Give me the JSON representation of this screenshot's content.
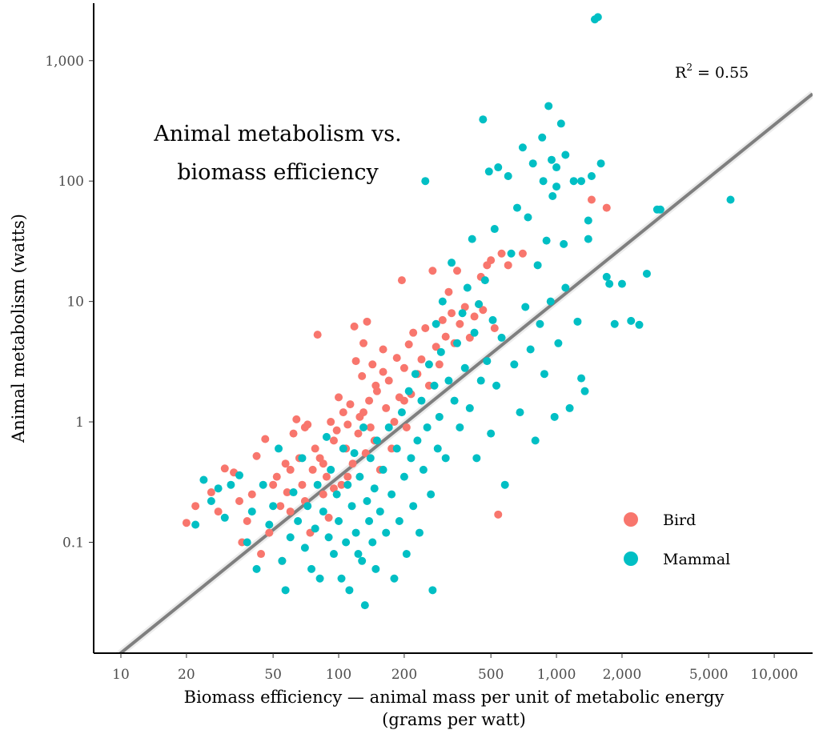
{
  "chart_data": {
    "type": "scatter",
    "title_lines": [
      "Animal metabolism vs.",
      "biomass efficiency"
    ],
    "xlabel_lines": [
      "Biomass efficiency — animal mass per unit of metabolic energy",
      "(grams per watt)"
    ],
    "ylabel": "Animal metabolism (watts)",
    "x_scale": "log",
    "y_scale": "log",
    "xlim": [
      7.5,
      15000
    ],
    "ylim": [
      0.012,
      3000
    ],
    "x_ticks": [
      {
        "value": 10,
        "label": "10"
      },
      {
        "value": 20,
        "label": "20"
      },
      {
        "value": 50,
        "label": "50"
      },
      {
        "value": 100,
        "label": "100"
      },
      {
        "value": 200,
        "label": "200"
      },
      {
        "value": 500,
        "label": "500"
      },
      {
        "value": 1000,
        "label": "1,000"
      },
      {
        "value": 2000,
        "label": "2,000"
      },
      {
        "value": 5000,
        "label": "5,000"
      },
      {
        "value": 10000,
        "label": "10,000"
      }
    ],
    "y_ticks": [
      {
        "value": 0.1,
        "label": "0.1"
      },
      {
        "value": 1,
        "label": "1"
      },
      {
        "value": 10,
        "label": "10"
      },
      {
        "value": 100,
        "label": "100"
      },
      {
        "value": 1000,
        "label": "1,000"
      }
    ],
    "grid": false,
    "legend_position": "bottom-right",
    "annotation": {
      "text": "R",
      "superscript": "2",
      "suffix": " = 0.55"
    },
    "fit_line": {
      "x": [
        8.5,
        15000
      ],
      "y": [
        0.0095,
        530
      ],
      "color": "#7f7f7f"
    },
    "series": [
      {
        "name": "Bird",
        "color": "#f8766d",
        "points": [
          [
            20,
            0.145
          ],
          [
            22,
            0.2
          ],
          [
            26,
            0.26
          ],
          [
            28,
            0.18
          ],
          [
            30,
            0.41
          ],
          [
            33,
            0.38
          ],
          [
            35,
            0.22
          ],
          [
            36,
            0.1
          ],
          [
            38,
            0.15
          ],
          [
            40,
            0.25
          ],
          [
            42,
            0.52
          ],
          [
            44,
            0.08
          ],
          [
            46,
            0.72
          ],
          [
            48,
            0.12
          ],
          [
            50,
            0.3
          ],
          [
            52,
            0.35
          ],
          [
            54,
            0.2
          ],
          [
            55,
            0.07
          ],
          [
            57,
            0.45
          ],
          [
            58,
            0.26
          ],
          [
            60,
            0.18
          ],
          [
            62,
            0.8
          ],
          [
            64,
            1.05
          ],
          [
            66,
            0.5
          ],
          [
            68,
            0.3
          ],
          [
            70,
            0.22
          ],
          [
            72,
            0.95
          ],
          [
            74,
            0.12
          ],
          [
            76,
            0.4
          ],
          [
            78,
            0.6
          ],
          [
            80,
            5.3
          ],
          [
            82,
            0.5
          ],
          [
            85,
            0.25
          ],
          [
            88,
            0.35
          ],
          [
            90,
            0.16
          ],
          [
            92,
            1.0
          ],
          [
            95,
            0.7
          ],
          [
            98,
            0.85
          ],
          [
            100,
            1.6
          ],
          [
            103,
            0.3
          ],
          [
            105,
            1.2
          ],
          [
            108,
            0.6
          ],
          [
            110,
            0.95
          ],
          [
            113,
            1.4
          ],
          [
            116,
            0.45
          ],
          [
            118,
            6.2
          ],
          [
            120,
            3.2
          ],
          [
            123,
            0.8
          ],
          [
            125,
            1.1
          ],
          [
            128,
            2.4
          ],
          [
            130,
            4.5
          ],
          [
            133,
            0.55
          ],
          [
            135,
            6.8
          ],
          [
            138,
            1.5
          ],
          [
            140,
            0.9
          ],
          [
            143,
            3.0
          ],
          [
            146,
            0.7
          ],
          [
            148,
            2.0
          ],
          [
            150,
            1.8
          ],
          [
            155,
            0.4
          ],
          [
            160,
            4.0
          ],
          [
            165,
            1.3
          ],
          [
            170,
            2.2
          ],
          [
            175,
            0.6
          ],
          [
            180,
            1.0
          ],
          [
            185,
            3.4
          ],
          [
            190,
            1.6
          ],
          [
            195,
            15
          ],
          [
            200,
            2.8
          ],
          [
            205,
            0.9
          ],
          [
            210,
            4.4
          ],
          [
            215,
            1.7
          ],
          [
            220,
            5.5
          ],
          [
            230,
            2.5
          ],
          [
            240,
            3.3
          ],
          [
            250,
            6.0
          ],
          [
            260,
            2.0
          ],
          [
            270,
            18
          ],
          [
            280,
            4.2
          ],
          [
            290,
            3.0
          ],
          [
            300,
            7.0
          ],
          [
            310,
            5.1
          ],
          [
            320,
            12
          ],
          [
            330,
            8.0
          ],
          [
            340,
            4.5
          ],
          [
            350,
            18
          ],
          [
            360,
            6.5
          ],
          [
            380,
            9.0
          ],
          [
            400,
            5.0
          ],
          [
            420,
            7.5
          ],
          [
            440,
            9.5
          ],
          [
            450,
            16
          ],
          [
            460,
            8.5
          ],
          [
            480,
            20
          ],
          [
            500,
            22
          ],
          [
            520,
            6.0
          ],
          [
            540,
            0.17
          ],
          [
            560,
            25
          ],
          [
            600,
            20
          ],
          [
            700,
            25
          ],
          [
            1450,
            70
          ],
          [
            1700,
            60
          ],
          [
            60,
            0.4
          ],
          [
            70,
            0.9
          ],
          [
            85,
            0.45
          ],
          [
            95,
            0.28
          ],
          [
            110,
            0.35
          ],
          [
            130,
            1.2
          ],
          [
            160,
            2.6
          ],
          [
            200,
            1.5
          ]
        ]
      },
      {
        "name": "Mammal",
        "color": "#00bfc4",
        "points": [
          [
            22,
            0.14
          ],
          [
            24,
            0.33
          ],
          [
            26,
            0.22
          ],
          [
            28,
            0.28
          ],
          [
            30,
            0.16
          ],
          [
            32,
            0.3
          ],
          [
            35,
            0.36
          ],
          [
            38,
            0.1
          ],
          [
            40,
            0.18
          ],
          [
            42,
            0.06
          ],
          [
            45,
            0.3
          ],
          [
            48,
            0.14
          ],
          [
            50,
            0.2
          ],
          [
            53,
            0.6
          ],
          [
            55,
            0.07
          ],
          [
            57,
            0.04
          ],
          [
            60,
            0.11
          ],
          [
            62,
            0.26
          ],
          [
            65,
            0.15
          ],
          [
            68,
            0.5
          ],
          [
            70,
            0.09
          ],
          [
            72,
            0.2
          ],
          [
            75,
            0.06
          ],
          [
            78,
            0.13
          ],
          [
            80,
            0.3
          ],
          [
            82,
            0.05
          ],
          [
            85,
            0.18
          ],
          [
            88,
            0.75
          ],
          [
            90,
            0.11
          ],
          [
            92,
            0.4
          ],
          [
            95,
            0.08
          ],
          [
            98,
            0.25
          ],
          [
            100,
            0.15
          ],
          [
            103,
            0.05
          ],
          [
            105,
            0.6
          ],
          [
            108,
            0.1
          ],
          [
            110,
            0.3
          ],
          [
            112,
            0.04
          ],
          [
            115,
            0.2
          ],
          [
            118,
            0.55
          ],
          [
            120,
            0.12
          ],
          [
            123,
            0.08
          ],
          [
            125,
            0.35
          ],
          [
            128,
            0.07
          ],
          [
            130,
            0.9
          ],
          [
            132,
            0.03
          ],
          [
            135,
            0.22
          ],
          [
            138,
            0.15
          ],
          [
            140,
            0.5
          ],
          [
            143,
            0.1
          ],
          [
            146,
            0.28
          ],
          [
            148,
            0.06
          ],
          [
            150,
            0.7
          ],
          [
            155,
            0.18
          ],
          [
            160,
            0.4
          ],
          [
            165,
            0.12
          ],
          [
            170,
            0.9
          ],
          [
            175,
            0.25
          ],
          [
            180,
            0.05
          ],
          [
            185,
            0.6
          ],
          [
            190,
            0.15
          ],
          [
            195,
            1.2
          ],
          [
            200,
            0.35
          ],
          [
            205,
            0.08
          ],
          [
            210,
            1.8
          ],
          [
            215,
            0.5
          ],
          [
            220,
            0.2
          ],
          [
            225,
            2.5
          ],
          [
            230,
            0.7
          ],
          [
            235,
            0.12
          ],
          [
            240,
            1.5
          ],
          [
            245,
            0.4
          ],
          [
            250,
            100
          ],
          [
            255,
            0.9
          ],
          [
            260,
            3.0
          ],
          [
            265,
            0.25
          ],
          [
            270,
            0.04
          ],
          [
            275,
            2.0
          ],
          [
            280,
            6.5
          ],
          [
            285,
            0.6
          ],
          [
            290,
            1.1
          ],
          [
            295,
            3.8
          ],
          [
            300,
            10
          ],
          [
            310,
            0.5
          ],
          [
            320,
            2.2
          ],
          [
            330,
            21
          ],
          [
            340,
            1.5
          ],
          [
            350,
            4.5
          ],
          [
            360,
            0.9
          ],
          [
            370,
            8.0
          ],
          [
            380,
            2.8
          ],
          [
            390,
            13
          ],
          [
            400,
            1.3
          ],
          [
            410,
            33
          ],
          [
            420,
            5.5
          ],
          [
            430,
            0.5
          ],
          [
            440,
            9.5
          ],
          [
            450,
            2.2
          ],
          [
            460,
            325
          ],
          [
            470,
            15
          ],
          [
            480,
            3.2
          ],
          [
            490,
            120
          ],
          [
            500,
            0.8
          ],
          [
            510,
            7.0
          ],
          [
            520,
            40
          ],
          [
            530,
            2.0
          ],
          [
            540,
            130
          ],
          [
            560,
            5.0
          ],
          [
            580,
            0.3
          ],
          [
            600,
            110
          ],
          [
            620,
            25
          ],
          [
            640,
            3.0
          ],
          [
            660,
            60
          ],
          [
            680,
            1.2
          ],
          [
            700,
            190
          ],
          [
            720,
            9.0
          ],
          [
            740,
            50
          ],
          [
            760,
            4.0
          ],
          [
            780,
            140
          ],
          [
            800,
            0.7
          ],
          [
            820,
            20
          ],
          [
            840,
            6.5
          ],
          [
            860,
            230
          ],
          [
            880,
            2.5
          ],
          [
            900,
            32
          ],
          [
            920,
            420
          ],
          [
            940,
            10
          ],
          [
            960,
            75
          ],
          [
            980,
            1.1
          ],
          [
            1000,
            130
          ],
          [
            1020,
            4.5
          ],
          [
            1050,
            300
          ],
          [
            1080,
            30
          ],
          [
            1100,
            13
          ],
          [
            1150,
            1.3
          ],
          [
            1200,
            100
          ],
          [
            1250,
            6.8
          ],
          [
            1300,
            2.3
          ],
          [
            1350,
            1.8
          ],
          [
            1400,
            33
          ],
          [
            1450,
            110
          ],
          [
            1500,
            2200
          ],
          [
            1550,
            2300
          ],
          [
            1600,
            140
          ],
          [
            1700,
            16
          ],
          [
            1750,
            14
          ],
          [
            1850,
            6.5
          ],
          [
            2000,
            14
          ],
          [
            2200,
            6.9
          ],
          [
            2400,
            6.4
          ],
          [
            2600,
            17
          ],
          [
            2900,
            58
          ],
          [
            3000,
            58
          ],
          [
            6300,
            70
          ],
          [
            1400,
            47
          ],
          [
            1300,
            100
          ],
          [
            1100,
            165
          ],
          [
            1000,
            90
          ],
          [
            950,
            150
          ],
          [
            870,
            100
          ]
        ]
      }
    ]
  },
  "legend": {
    "items": [
      {
        "label": "Bird",
        "color": "#f8766d"
      },
      {
        "label": "Mammal",
        "color": "#00bfc4"
      }
    ]
  }
}
